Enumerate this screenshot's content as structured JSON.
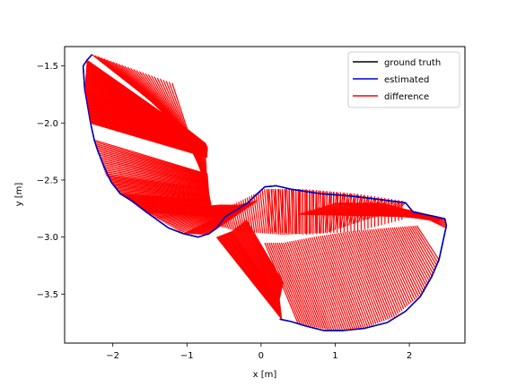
{
  "chart_data": {
    "type": "line",
    "xlabel": "x [m]",
    "ylabel": "y [m]",
    "xlim": [
      -2.65,
      2.75
    ],
    "ylim": [
      -3.93,
      -1.33
    ],
    "xticks": [
      -2,
      -1,
      0,
      1,
      2
    ],
    "yticks": [
      -1.5,
      -2.0,
      -2.5,
      -3.0,
      -3.5
    ],
    "xtick_labels": [
      "−2",
      "−1",
      "0",
      "1",
      "2"
    ],
    "ytick_labels": [
      "−1.5",
      "−2.0",
      "−2.5",
      "−3.0",
      "−3.5"
    ],
    "grid": false,
    "legend_position": "top-right",
    "legend": [
      {
        "label": "ground truth",
        "color": "#000000"
      },
      {
        "label": "estimated",
        "color": "#0000cc"
      },
      {
        "label": "difference",
        "color": "#ff0000"
      }
    ],
    "series": [
      {
        "name": "ground truth",
        "color": "#000000",
        "points": [
          [
            -2.28,
            -1.4
          ],
          [
            -2.35,
            -1.45
          ],
          [
            -2.4,
            -1.5
          ],
          [
            -2.38,
            -1.7
          ],
          [
            -2.3,
            -2.0
          ],
          [
            -2.25,
            -2.15
          ],
          [
            -2.2,
            -2.25
          ],
          [
            -2.12,
            -2.38
          ],
          [
            -2.02,
            -2.52
          ],
          [
            -1.9,
            -2.62
          ],
          [
            -1.75,
            -2.68
          ],
          [
            -1.55,
            -2.78
          ],
          [
            -1.4,
            -2.85
          ],
          [
            -1.25,
            -2.92
          ],
          [
            -1.05,
            -2.97
          ],
          [
            -0.85,
            -3.0
          ],
          [
            -0.7,
            -2.97
          ],
          [
            -0.6,
            -2.92
          ],
          [
            -0.48,
            -2.82
          ],
          [
            -0.3,
            -2.75
          ],
          [
            -0.18,
            -2.7
          ],
          [
            -0.05,
            -2.62
          ],
          [
            0.05,
            -2.56
          ],
          [
            0.2,
            -2.55
          ],
          [
            0.4,
            -2.58
          ],
          [
            0.8,
            -2.62
          ],
          [
            1.2,
            -2.64
          ],
          [
            1.6,
            -2.67
          ],
          [
            1.95,
            -2.7
          ],
          [
            2.05,
            -2.78
          ],
          [
            2.35,
            -2.82
          ],
          [
            2.48,
            -2.84
          ],
          [
            2.5,
            -2.9
          ],
          [
            2.45,
            -3.05
          ],
          [
            2.4,
            -3.2
          ],
          [
            2.3,
            -3.35
          ],
          [
            2.15,
            -3.52
          ],
          [
            1.95,
            -3.65
          ],
          [
            1.7,
            -3.75
          ],
          [
            1.4,
            -3.8
          ],
          [
            1.1,
            -3.82
          ],
          [
            0.85,
            -3.82
          ],
          [
            0.6,
            -3.78
          ],
          [
            0.4,
            -3.74
          ],
          [
            0.25,
            -3.72
          ]
        ]
      },
      {
        "name": "estimated",
        "color": "#0000cc",
        "points": [
          [
            -2.28,
            -1.4
          ],
          [
            -2.35,
            -1.45
          ],
          [
            -2.4,
            -1.5
          ],
          [
            -2.38,
            -1.7
          ],
          [
            -2.3,
            -2.0
          ],
          [
            -2.25,
            -2.15
          ],
          [
            -2.2,
            -2.25
          ],
          [
            -2.12,
            -2.38
          ],
          [
            -2.02,
            -2.52
          ],
          [
            -1.9,
            -2.62
          ],
          [
            -1.75,
            -2.68
          ],
          [
            -1.55,
            -2.78
          ],
          [
            -1.4,
            -2.85
          ],
          [
            -1.25,
            -2.92
          ],
          [
            -1.05,
            -2.97
          ],
          [
            -0.85,
            -3.0
          ],
          [
            -0.7,
            -2.97
          ],
          [
            -0.6,
            -2.92
          ],
          [
            -0.48,
            -2.82
          ],
          [
            -0.3,
            -2.75
          ],
          [
            -0.18,
            -2.7
          ],
          [
            -0.05,
            -2.62
          ],
          [
            0.05,
            -2.56
          ],
          [
            0.2,
            -2.55
          ],
          [
            0.4,
            -2.58
          ],
          [
            0.8,
            -2.62
          ],
          [
            1.2,
            -2.64
          ],
          [
            1.6,
            -2.67
          ],
          [
            1.95,
            -2.7
          ],
          [
            2.05,
            -2.78
          ],
          [
            2.35,
            -2.82
          ],
          [
            2.48,
            -2.84
          ],
          [
            2.5,
            -2.9
          ],
          [
            2.45,
            -3.05
          ],
          [
            2.4,
            -3.2
          ],
          [
            2.3,
            -3.35
          ],
          [
            2.15,
            -3.52
          ],
          [
            1.95,
            -3.65
          ],
          [
            1.7,
            -3.75
          ],
          [
            1.4,
            -3.8
          ],
          [
            1.1,
            -3.82
          ],
          [
            0.85,
            -3.82
          ],
          [
            0.6,
            -3.78
          ],
          [
            0.4,
            -3.74
          ],
          [
            0.25,
            -3.72
          ]
        ]
      },
      {
        "name": "difference",
        "color": "#ff0000",
        "segments": [
          {
            "from": [
              [
                -2.35,
                -1.45
              ],
              [
                -2.38,
                -1.7
              ],
              [
                -2.3,
                -2.0
              ]
            ],
            "to": [
              [
                -0.75,
                -2.18
              ],
              [
                -0.72,
                -2.22
              ],
              [
                -0.73,
                -2.3
              ]
            ],
            "count": 60
          },
          {
            "from": [
              [
                -2.28,
                -1.4
              ],
              [
                -1.2,
                -1.65
              ]
            ],
            "to": [
              [
                -0.75,
                -2.18
              ],
              [
                -0.72,
                -2.6
              ]
            ],
            "count": 28
          },
          {
            "from": [
              [
                -2.25,
                -2.15
              ],
              [
                -2.1,
                -2.45
              ],
              [
                -1.9,
                -2.62
              ],
              [
                -1.55,
                -2.78
              ]
            ],
            "to": [
              [
                -0.72,
                -2.45
              ],
              [
                -0.7,
                -2.62
              ],
              [
                -0.66,
                -2.75
              ],
              [
                -0.68,
                -2.82
              ]
            ],
            "count": 55
          },
          {
            "from": [
              [
                -1.55,
                -2.78
              ],
              [
                -1.05,
                -2.97
              ],
              [
                -0.72,
                -2.98
              ]
            ],
            "to": [
              [
                -0.55,
                -2.72
              ],
              [
                -0.3,
                -2.72
              ],
              [
                -0.05,
                -2.68
              ]
            ],
            "count": 35
          },
          {
            "from": [
              [
                -0.72,
                -2.75
              ],
              [
                -0.4,
                -2.72
              ],
              [
                0.05,
                -2.58
              ],
              [
                0.5,
                -2.58
              ],
              [
                1.2,
                -2.62
              ],
              [
                1.95,
                -2.7
              ]
            ],
            "to": [
              [
                -0.6,
                -2.9
              ],
              [
                -0.3,
                -2.95
              ],
              [
                0.3,
                -2.98
              ],
              [
                0.9,
                -2.96
              ],
              [
                1.4,
                -2.85
              ],
              [
                1.8,
                -2.78
              ]
            ],
            "count": 90
          },
          {
            "from": [
              [
                0.5,
                -2.8
              ],
              [
                1.0,
                -2.7
              ],
              [
                1.6,
                -2.7
              ],
              [
                2.05,
                -2.78
              ]
            ],
            "to": [
              [
                2.0,
                -2.82
              ],
              [
                2.35,
                -2.86
              ],
              [
                2.48,
                -2.84
              ],
              [
                2.5,
                -2.92
              ]
            ],
            "count": 40
          },
          {
            "from": [
              [
                -0.6,
                -3.0
              ],
              [
                -0.4,
                -2.95
              ],
              [
                -0.2,
                -2.85
              ]
            ],
            "to": [
              [
                0.28,
                -3.72
              ],
              [
                0.25,
                -3.55
              ],
              [
                0.3,
                -3.4
              ]
            ],
            "count": 35
          },
          {
            "from": [
              [
                0.05,
                -3.05
              ],
              [
                0.3,
                -3.05
              ],
              [
                0.7,
                -3.0
              ],
              [
                1.2,
                -2.95
              ],
              [
                1.7,
                -2.92
              ],
              [
                2.1,
                -2.9
              ]
            ],
            "to": [
              [
                0.5,
                -3.76
              ],
              [
                0.95,
                -3.82
              ],
              [
                1.4,
                -3.8
              ],
              [
                1.8,
                -3.7
              ],
              [
                2.2,
                -3.48
              ],
              [
                2.4,
                -3.2
              ]
            ],
            "count": 75
          },
          {
            "from": [
              [
                0.1,
                -2.58
              ],
              [
                0.6,
                -2.58
              ],
              [
                1.3,
                -2.62
              ],
              [
                1.9,
                -2.68
              ]
            ],
            "to": [
              [
                0.1,
                -2.95
              ],
              [
                0.6,
                -2.98
              ],
              [
                1.3,
                -2.95
              ],
              [
                1.9,
                -2.85
              ]
            ],
            "count": 40
          }
        ]
      }
    ]
  }
}
